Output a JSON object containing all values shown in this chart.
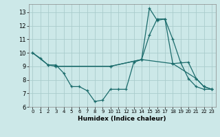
{
  "xlabel": "Humidex (Indice chaleur)",
  "bg_color": "#cce8e8",
  "grid_color": "#aacccc",
  "line_color": "#1a6b6b",
  "xlim": [
    -0.5,
    23.5
  ],
  "ylim": [
    6,
    13.6
  ],
  "xticks": [
    0,
    1,
    2,
    3,
    4,
    5,
    6,
    7,
    8,
    9,
    10,
    11,
    12,
    13,
    14,
    15,
    16,
    17,
    18,
    19,
    20,
    21,
    22,
    23
  ],
  "yticks": [
    6,
    7,
    8,
    9,
    10,
    11,
    12,
    13
  ],
  "series": [
    {
      "x": [
        0,
        1,
        2,
        3,
        4,
        5,
        6,
        7,
        8,
        9,
        10,
        11,
        12,
        13,
        14,
        15,
        16,
        17,
        18,
        19,
        20,
        21,
        22,
        23
      ],
      "y": [
        10.0,
        9.6,
        9.1,
        9.1,
        8.5,
        7.5,
        7.5,
        7.2,
        6.4,
        6.5,
        7.3,
        7.3,
        7.3,
        9.3,
        9.5,
        11.3,
        12.5,
        12.5,
        11.0,
        9.3,
        8.1,
        7.5,
        7.3,
        7.3
      ]
    },
    {
      "x": [
        0,
        2,
        3,
        10,
        14,
        15,
        16,
        17,
        18,
        20,
        21,
        22,
        23
      ],
      "y": [
        10.0,
        9.1,
        9.0,
        9.0,
        9.5,
        13.3,
        12.4,
        12.5,
        9.2,
        9.3,
        8.1,
        7.5,
        7.3
      ]
    },
    {
      "x": [
        3,
        10,
        14,
        18,
        21,
        22,
        23
      ],
      "y": [
        9.0,
        9.0,
        9.5,
        9.2,
        8.1,
        7.5,
        7.3
      ]
    }
  ]
}
